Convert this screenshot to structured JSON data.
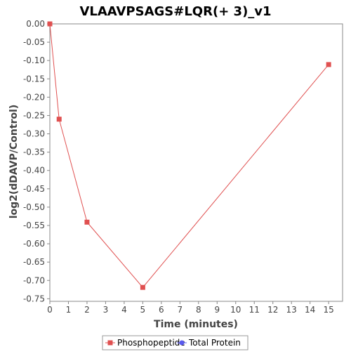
{
  "chart_data": {
    "type": "line",
    "title": "VLAAVPSAGS#LQR(+ 3)_v1",
    "xlabel": "Time (minutes)",
    "ylabel": "log2(dDAVP/Control)",
    "xlim": [
      0,
      15.75
    ],
    "ylim": [
      -0.757,
      0.0
    ],
    "xticks": [
      0,
      1,
      2,
      3,
      4,
      5,
      6,
      7,
      8,
      9,
      10,
      11,
      12,
      13,
      14,
      15
    ],
    "yticks": [
      0.0,
      -0.05,
      -0.1,
      -0.15,
      -0.2,
      -0.25,
      -0.3,
      -0.35,
      -0.4,
      -0.45,
      -0.5,
      -0.55,
      -0.6,
      -0.65,
      -0.7,
      -0.75
    ],
    "ytick_labels": [
      "0.00",
      "-0.05",
      "-0.10",
      "-0.15",
      "-0.20",
      "-0.25",
      "-0.30",
      "-0.35",
      "-0.40",
      "-0.45",
      "-0.50",
      "-0.55",
      "-0.60",
      "-0.65",
      "-0.70",
      "-0.75"
    ],
    "grid": false,
    "legend_position": "bottom-center",
    "series": [
      {
        "name": "Phosphopeptide",
        "color": "#e05050",
        "marker": "square",
        "x": [
          0,
          0.5,
          2,
          5,
          15
        ],
        "y": [
          0.0,
          -0.26,
          -0.541,
          -0.719,
          -0.111
        ]
      },
      {
        "name": "Total Protein",
        "color": "#5a5aee",
        "marker": "circle",
        "x": [],
        "y": []
      }
    ]
  }
}
